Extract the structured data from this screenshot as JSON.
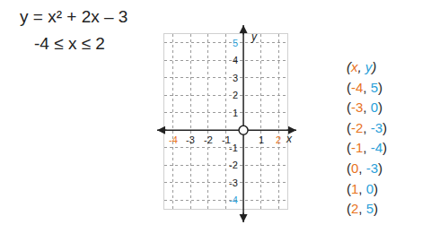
{
  "chart_data": {
    "type": "scatter",
    "xlabel": "x",
    "ylabel": "y",
    "xlim": [
      -4.5,
      2.5
    ],
    "ylim": [
      -4.5,
      5.5
    ],
    "xticks": [
      -4,
      -3,
      -2,
      -1,
      1,
      2
    ],
    "yticks": [
      -4,
      -3,
      -2,
      -1,
      1,
      2,
      3,
      4,
      5
    ],
    "grid": true,
    "series": []
  },
  "equation": "y = x² + 2x – 3",
  "domain": "-4 ≤ x ≤ 2",
  "table": {
    "header": [
      "x",
      "y"
    ],
    "delimiters": [
      "(",
      ", ",
      ")"
    ],
    "colors": [
      "#e8731e",
      "#2b9fd9"
    ],
    "rows": [
      [
        -4,
        5
      ],
      [
        -3,
        0
      ],
      [
        -2,
        -3
      ],
      [
        -1,
        -4
      ],
      [
        0,
        -3
      ],
      [
        1,
        0
      ],
      [
        2,
        5
      ]
    ]
  }
}
